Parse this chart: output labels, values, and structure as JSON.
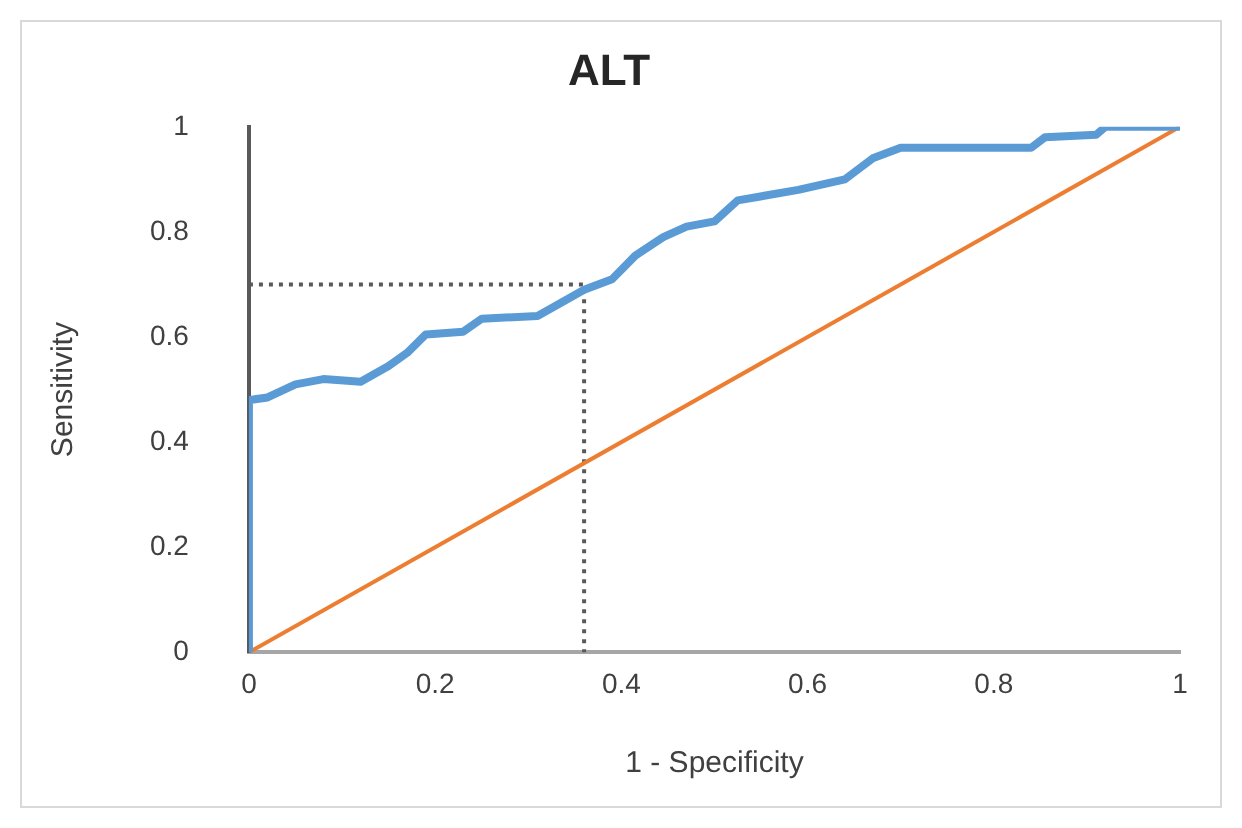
{
  "chart_data": {
    "type": "line",
    "title": "ALT",
    "xlabel": "1 - Specificity",
    "ylabel": "Sensitivity",
    "xlim": [
      0,
      1
    ],
    "ylim": [
      0,
      1
    ],
    "xticks": [
      0,
      0.2,
      0.4,
      0.6,
      0.8,
      1
    ],
    "yticks": [
      0,
      0.2,
      0.4,
      0.6,
      0.8,
      1
    ],
    "grid": false,
    "legend": false,
    "marker": "none",
    "series": [
      {
        "color": "#5b9bd5",
        "line_style": "solid",
        "x": [
          0,
          0,
          0.02,
          0.05,
          0.08,
          0.12,
          0.15,
          0.17,
          0.19,
          0.23,
          0.25,
          0.31,
          0.36,
          0.39,
          0.415,
          0.445,
          0.47,
          0.5,
          0.525,
          0.59,
          0.64,
          0.67,
          0.7,
          0.84,
          0.855,
          0.91,
          0.92,
          1
        ],
        "values": [
          0,
          0.48,
          0.485,
          0.51,
          0.52,
          0.515,
          0.545,
          0.57,
          0.605,
          0.61,
          0.635,
          0.64,
          0.69,
          0.71,
          0.755,
          0.79,
          0.81,
          0.82,
          0.86,
          0.88,
          0.9,
          0.94,
          0.96,
          0.96,
          0.98,
          0.985,
          1,
          1
        ]
      },
      {
        "color": "#ed7d31",
        "line_style": "solid",
        "x": [
          0,
          1
        ],
        "values": [
          0,
          1
        ]
      },
      {
        "color": "#595959",
        "line_style": "dotted",
        "x": [
          0,
          0.36,
          0.36
        ],
        "values": [
          0.7,
          0.7,
          0
        ]
      }
    ]
  }
}
